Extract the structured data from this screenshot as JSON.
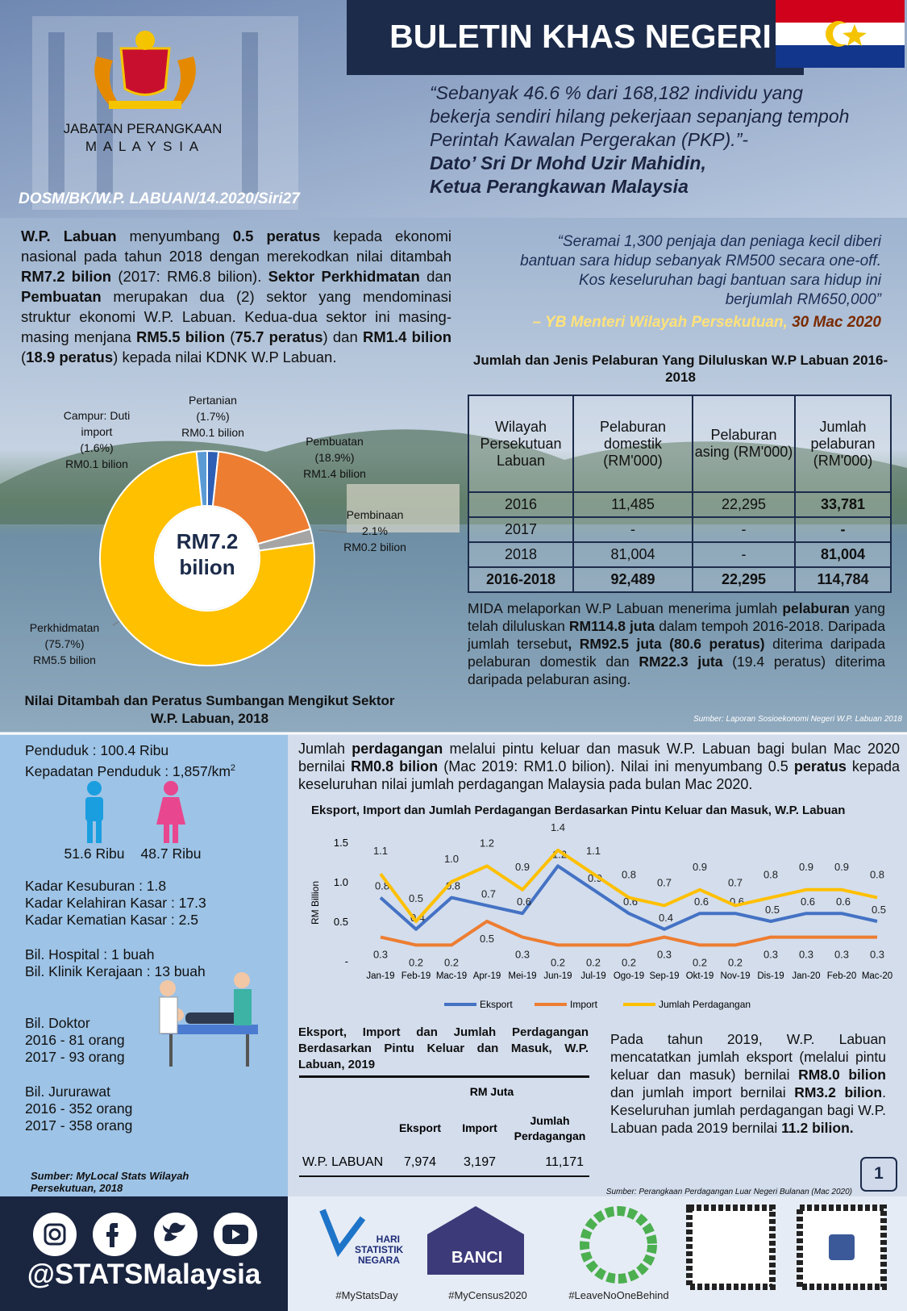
{
  "header": {
    "title": "BULETIN KHAS NEGERI",
    "org": "JABATAN PERANGKAAN",
    "country": "M A L A Y S I A",
    "ref": "DOSM/BK/W.P. LABUAN/14.2020/Siri27"
  },
  "quote1": {
    "lines": [
      "“Sebanyak 46.6 % dari 168,182 individu yang",
      "bekerja sendiri hilang pekerjaan sepanjang tempoh",
      "Perintah Kawalan Pergerakan (PKP).”-"
    ],
    "author": "Dato’ Sri Dr Mohd Uzir Mahidin,",
    "role": "Ketua Perangkawan Malaysia"
  },
  "intro": {
    "segments": [
      {
        "t": "W.P. Labuan",
        "b": true
      },
      {
        "t": " menyumbang "
      },
      {
        "t": "0.5 peratus",
        "b": true
      },
      {
        "t": " kepada ekonomi nasional pada tahun 2018 dengan merekodkan nilai ditambah "
      },
      {
        "t": "RM7.2 bilion",
        "b": true
      },
      {
        "t": " (2017: RM6.8 bilion). "
      },
      {
        "t": "Sektor Perkhidmatan",
        "b": true
      },
      {
        "t": " dan "
      },
      {
        "t": "Pembuatan",
        "b": true
      },
      {
        "t": " merupakan dua (2) sektor yang mendominasi struktur ekonomi W.P. Labuan. Kedua-dua sektor ini masing-masing menjana "
      },
      {
        "t": "RM5.5 bilion",
        "b": true
      },
      {
        "t": " ("
      },
      {
        "t": "75.7 peratus",
        "b": true
      },
      {
        "t": ") dan "
      },
      {
        "t": "RM1.4 bilion",
        "b": true
      },
      {
        "t": " ("
      },
      {
        "t": "18.9 peratus",
        "b": true
      },
      {
        "t": ") kepada nilai KDNK W.P Labuan."
      }
    ]
  },
  "quote2": {
    "lines": [
      "“Seramai 1,300 penjaja dan peniaga kecil diberi",
      "bantuan sara hidup sebanyak RM500 secara one-off.",
      "Kos keseluruhan bagi bantuan sara hidup ini",
      "berjumlah RM650,000”"
    ],
    "author": "– YB Menteri Wilayah Persekutuan,",
    "date": "30 Mac 2020"
  },
  "chart_data": [
    {
      "type": "pie",
      "title": "Nilai Ditambah dan Peratus Sumbangan Mengikut Sektor W.P. Labuan, 2018",
      "center_label": [
        "RM7.2",
        "bilion"
      ],
      "categories": [
        "Pertanian",
        "Pembuatan",
        "Pembinaan",
        "Perkhidmatan",
        "Campur: Duti import"
      ],
      "values": [
        1.7,
        18.9,
        2.1,
        75.7,
        1.6
      ],
      "value_labels": [
        "(1.7%)",
        "(18.9%)",
        "2.1%",
        "(75.7%)",
        "(1.6%)"
      ],
      "amounts": [
        "RM0.1 bilion",
        "RM1.4 bilion",
        "RM0.2 bilion",
        "RM5.5 bilion",
        "RM0.1 bilion"
      ],
      "colors": [
        "#2e5fb5",
        "#ed7d31",
        "#a5a5a5",
        "#ffc000",
        "#5b9bd5"
      ]
    },
    {
      "type": "line",
      "title": "Eksport, Import dan Jumlah Perdagangan Berdasarkan Pintu Keluar dan Masuk, W.P. Labuan",
      "ylabel": "RM Billion",
      "categories": [
        "Jan-19",
        "Feb-19",
        "Mac-19",
        "Apr-19",
        "Mei-19",
        "Jun-19",
        "Jul-19",
        "Ogo-19",
        "Sep-19",
        "Okt-19",
        "Nov-19",
        "Dis-19",
        "Jan-20",
        "Feb-20",
        "Mac-20"
      ],
      "ylim": [
        0,
        1.5
      ],
      "yticks": [
        {
          "value": 0,
          "label": "-"
        },
        0.5,
        {
          "value": 1,
          "label": "1.0"
        },
        1.5
      ],
      "grid": false,
      "series": [
        {
          "name": "Eksport",
          "color": "#4472c4",
          "values": [
            0.8,
            0.4,
            0.8,
            0.7,
            0.6,
            1.2,
            0.9,
            0.6,
            0.4,
            0.6,
            0.6,
            0.5,
            0.6,
            0.6,
            0.5
          ],
          "value_labels": [
            "0.8",
            "0.4",
            "0.8",
            "0.7",
            "0.6",
            "1.2",
            "0.9",
            "0.6",
            "0.4",
            "0.6",
            "0.6",
            "0.5",
            "0.6",
            "0.6",
            "0.5"
          ]
        },
        {
          "name": "Import",
          "color": "#ed7d31",
          "values": [
            0.3,
            0.2,
            0.2,
            0.5,
            0.3,
            0.2,
            0.2,
            0.2,
            0.3,
            0.2,
            0.2,
            0.3,
            0.3,
            0.3,
            0.3
          ],
          "value_labels": [
            "0.3",
            "0.2",
            "0.2",
            "0.5",
            "0.3",
            "0.2",
            "0.2",
            "0.2",
            "0.3",
            "0.2",
            "0.2",
            "0.3",
            "0.3",
            "0.3",
            "0.3"
          ]
        },
        {
          "name": "Jumlah Perdagangan",
          "color": "#ffc000",
          "values": [
            1.1,
            0.5,
            1.0,
            1.2,
            0.9,
            1.4,
            1.1,
            0.8,
            0.7,
            0.9,
            0.7,
            0.8,
            0.9,
            0.9,
            0.8
          ],
          "value_labels": [
            "1.1",
            "0.5",
            "1.0",
            "1.2",
            "0.9",
            "1.4",
            "1.1",
            "0.8",
            "0.7",
            "0.9",
            "0.7",
            "0.8",
            "0.9",
            "0.9",
            "0.8"
          ]
        }
      ]
    }
  ],
  "investment": {
    "title": "Jumlah dan Jenis Pelaburan Yang Diluluskan W.P Labuan 2016-2018",
    "header": [
      "Wilayah Persekutuan Labuan",
      "Pelaburan domestik (RM'000)",
      "Pelaburan asing (RM'000)",
      "Jumlah pelaburan (RM'000)"
    ],
    "rows": [
      [
        "2016",
        "11,485",
        "22,295",
        "33,781"
      ],
      [
        "2017",
        "-",
        "-",
        "-"
      ],
      [
        "2018",
        "81,004",
        "-",
        "81,004"
      ],
      [
        "2016-2018",
        "92,489",
        "22,295",
        "114,784"
      ]
    ]
  },
  "mida": {
    "segments": [
      {
        "t": "MIDA melaporkan W.P Labuan menerima jumlah "
      },
      {
        "t": "pelaburan",
        "b": true
      },
      {
        "t": " yang telah diluluskan "
      },
      {
        "t": "RM114.8 juta",
        "b": true
      },
      {
        "t": " dalam tempoh 2016-2018. Daripada jumlah tersebut"
      },
      {
        "t": ", RM92.5 juta (80.6 peratus)",
        "b": true
      },
      {
        "t": " diterima daripada pelaburan domestik dan "
      },
      {
        "t": "RM22.3 juta",
        "b": true
      },
      {
        "t": " (19.4 peratus) diterima daripada pelaburan asing."
      }
    ]
  },
  "source1": "Sumber: Laporan Sosioekonomi Negeri W.P. Labuan 2018",
  "demography": {
    "population": "Penduduk : 100.4 Ribu",
    "density": "Kepadatan Penduduk : 1,857/km",
    "density_sup": "2",
    "male": "51.6 Ribu",
    "female": "48.7 Ribu",
    "groups": [
      [
        "Kadar Kesuburan : 1.8",
        "Kadar Kelahiran Kasar : 17.3",
        "Kadar Kematian Kasar : 2.5"
      ],
      [
        "Bil. Hospital : 1 buah",
        "Bil. Klinik Kerajaan : 13 buah"
      ],
      [
        "Bil. Doktor",
        "2016 - 81 orang",
        "2017 - 93 orang"
      ],
      [
        "Bil. Jururawat",
        "2016 - 352 orang",
        "2017 - 358 orang"
      ]
    ],
    "source": "Sumber: MyLocal Stats Wilayah Persekutuan, 2018"
  },
  "trade": {
    "segments": [
      {
        "t": "Jumlah "
      },
      {
        "t": "perdagangan",
        "b": true
      },
      {
        "t": " melalui pintu keluar dan masuk W.P. Labuan bagi bulan Mac 2020 bernilai "
      },
      {
        "t": "RM0.8 bilion",
        "b": true
      },
      {
        "t": " (Mac 2019: RM1.0 bilion). Nilai ini menyumbang 0.5 "
      },
      {
        "t": "peratus",
        "b": true
      },
      {
        "t": " kepada keseluruhan nilai jumlah perdagangan Malaysia pada bulan Mac 2020."
      }
    ]
  },
  "trade_table": {
    "title": "Eksport, Import dan Jumlah Perdagangan Berdasarkan Pintu Keluar dan Masuk, W.P. Labuan, 2019",
    "unit": "RM Juta",
    "header": [
      "Eksport",
      "Import",
      "Jumlah Perdagangan"
    ],
    "row": [
      "W.P. LABUAN",
      "7,974",
      "3,197",
      "11,171"
    ]
  },
  "summary2019": {
    "segments": [
      {
        "t": "Pada tahun 2019, W.P. Labuan mencatatkan jumlah eksport (melalui pintu keluar dan masuk) bernilai "
      },
      {
        "t": "RM8.0 bilion",
        "b": true
      },
      {
        "t": " dan jumlah import bernilai "
      },
      {
        "t": "RM3.2 bilion",
        "b": true
      },
      {
        "t": ". Keseluruhan jumlah perdagangan bagi W.P. Labuan pada 2019 bernilai "
      },
      {
        "t": "11.2 bilion.",
        "b": true
      }
    ]
  },
  "source3": "Sumber: Perangkaan Perdagangan Luar Negeri Bulanan (Mac 2020)",
  "page_number": "1",
  "footer": {
    "handle": "@STATSMalaysia",
    "stats_day": [
      "HARI",
      "STATISTIK",
      "NEGARA"
    ],
    "census": "BANCI",
    "hashtags": [
      "#MyStatsDay",
      "#MyCensus2020",
      "#LeaveNoOneBehind"
    ]
  }
}
